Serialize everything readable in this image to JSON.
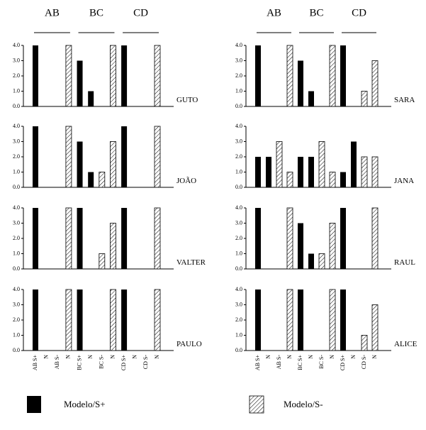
{
  "legend": [
    {
      "name": "Modelo/S+",
      "color": "#000000"
    },
    {
      "name": "Modelo/S-",
      "color": "hatched"
    }
  ],
  "chart_data": [
    {
      "type": "bar",
      "title": "GUTO",
      "groups": [
        "AB",
        "BC",
        "CD"
      ],
      "ylim": [
        0,
        4
      ],
      "yticks": [
        {
          "value": 0,
          "label": "0.0"
        },
        {
          "value": 1,
          "label": "1.0"
        },
        {
          "value": 2,
          "label": "2.0"
        },
        {
          "value": 3,
          "label": "3.0"
        },
        {
          "value": 4,
          "label": "4.0"
        }
      ],
      "series": [
        {
          "values": [
            4,
            0,
            null,
            null,
            3,
            1,
            null,
            null,
            4,
            0,
            null,
            null
          ]
        },
        {
          "values": [
            null,
            null,
            0,
            4,
            null,
            null,
            0,
            4,
            null,
            null,
            0,
            4
          ]
        }
      ]
    },
    {
      "type": "bar",
      "title": "SARA",
      "groups": [
        "AB",
        "BC",
        "CD"
      ],
      "ylim": [
        0,
        4
      ],
      "yticks": [
        {
          "value": 0,
          "label": "0.0"
        },
        {
          "value": 1,
          "label": "1.0"
        },
        {
          "value": 2,
          "label": "2.0"
        },
        {
          "value": 3,
          "label": "3.0"
        },
        {
          "value": 4,
          "label": "4.0"
        }
      ],
      "series": [
        {
          "values": [
            4,
            0,
            null,
            null,
            3,
            1,
            null,
            null,
            4,
            0,
            null,
            null
          ]
        },
        {
          "values": [
            null,
            null,
            0,
            4,
            null,
            null,
            0,
            4,
            null,
            null,
            1,
            3
          ]
        }
      ]
    },
    {
      "type": "bar",
      "title": "JOÃO",
      "ylim": [
        0,
        4
      ],
      "yticks": [
        {
          "value": 0,
          "label": "0.0"
        },
        {
          "value": 1,
          "label": "1.0"
        },
        {
          "value": 2,
          "label": "2.0"
        },
        {
          "value": 3,
          "label": "3.0"
        },
        {
          "value": 4,
          "label": "4.0"
        }
      ],
      "series": [
        {
          "values": [
            4,
            0,
            null,
            null,
            3,
            1,
            null,
            null,
            4,
            0,
            null,
            null
          ]
        },
        {
          "values": [
            null,
            null,
            0,
            4,
            null,
            null,
            1,
            3,
            null,
            null,
            0,
            4
          ]
        }
      ]
    },
    {
      "type": "bar",
      "title": "JANA",
      "ylim": [
        0,
        4
      ],
      "yticks": [
        {
          "value": 0,
          "label": "0.0"
        },
        {
          "value": 1,
          "label": "1.0"
        },
        {
          "value": 2,
          "label": "2.0"
        },
        {
          "value": 3,
          "label": "3.0"
        },
        {
          "value": 4,
          "label": "4.0"
        }
      ],
      "series": [
        {
          "values": [
            2,
            2,
            null,
            null,
            2,
            2,
            null,
            null,
            1,
            3,
            null,
            null
          ]
        },
        {
          "values": [
            null,
            null,
            3,
            1,
            null,
            null,
            3,
            1,
            null,
            null,
            2,
            2
          ]
        }
      ]
    },
    {
      "type": "bar",
      "title": "VALTER",
      "ylim": [
        0,
        4
      ],
      "yticks": [
        {
          "value": 0,
          "label": "0.0"
        },
        {
          "value": 1,
          "label": "1.0"
        },
        {
          "value": 2,
          "label": "2.0"
        },
        {
          "value": 3,
          "label": "3.0"
        },
        {
          "value": 4,
          "label": "4.0"
        }
      ],
      "series": [
        {
          "values": [
            4,
            0,
            null,
            null,
            4,
            0,
            null,
            null,
            4,
            0,
            null,
            null
          ]
        },
        {
          "values": [
            null,
            null,
            0,
            4,
            null,
            null,
            1,
            3,
            null,
            null,
            0,
            4
          ]
        }
      ]
    },
    {
      "type": "bar",
      "title": "RAUL",
      "ylim": [
        0,
        4
      ],
      "yticks": [
        {
          "value": 0,
          "label": "0.0"
        },
        {
          "value": 1,
          "label": "1.0"
        },
        {
          "value": 2,
          "label": "2.0"
        },
        {
          "value": 3,
          "label": "3.0"
        },
        {
          "value": 4,
          "label": "4.0"
        }
      ],
      "series": [
        {
          "values": [
            4,
            0,
            null,
            null,
            3,
            1,
            null,
            null,
            4,
            0,
            null,
            null
          ]
        },
        {
          "values": [
            null,
            null,
            0,
            4,
            null,
            null,
            1,
            3,
            null,
            null,
            0,
            4
          ]
        }
      ]
    },
    {
      "type": "bar",
      "title": "PAULO",
      "ylim": [
        0,
        4
      ],
      "categories": [
        "AB S+",
        "N",
        "AB S-",
        "N",
        "BC S+",
        "N",
        "BC S-",
        "N",
        "CD S+",
        "N",
        "CD S-",
        "N"
      ],
      "yticks": [
        {
          "value": 0,
          "label": "0.0"
        },
        {
          "value": 1,
          "label": "1.0"
        },
        {
          "value": 2,
          "label": "2.0"
        },
        {
          "value": 3,
          "label": "3.0"
        },
        {
          "value": 4,
          "label": "4.0"
        }
      ],
      "series": [
        {
          "values": [
            4,
            0,
            null,
            null,
            4,
            0,
            null,
            null,
            4,
            0,
            null,
            null
          ]
        },
        {
          "values": [
            null,
            null,
            0,
            4,
            null,
            null,
            0,
            4,
            null,
            null,
            0,
            4
          ]
        }
      ]
    },
    {
      "type": "bar",
      "title": "ALICE",
      "ylim": [
        0,
        4
      ],
      "categories": [
        "AB S+",
        "N",
        "AB S-",
        "N",
        "BC S+",
        "N",
        "BC S-",
        "N",
        "CD S+",
        "N",
        "CD S-",
        "N"
      ],
      "yticks": [
        {
          "value": 0,
          "label": "0.0"
        },
        {
          "value": 1,
          "label": "1.0"
        },
        {
          "value": 2,
          "label": "2.0"
        },
        {
          "value": 3,
          "label": "3.0"
        },
        {
          "value": 4,
          "label": "4.0"
        }
      ],
      "series": [
        {
          "values": [
            4,
            0,
            null,
            null,
            4,
            0,
            null,
            null,
            4,
            0,
            null,
            null
          ]
        },
        {
          "values": [
            null,
            null,
            0,
            4,
            null,
            null,
            0,
            4,
            null,
            null,
            1,
            3
          ]
        }
      ]
    }
  ]
}
